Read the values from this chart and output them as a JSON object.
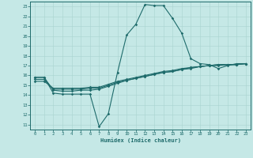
{
  "xlabel": "Humidex (Indice chaleur)",
  "bg_color": "#c5e8e6",
  "line_color": "#1e6b6b",
  "grid_color": "#aad4d0",
  "xlim": [
    -0.5,
    23.5
  ],
  "ylim": [
    10.5,
    23.5
  ],
  "yticks": [
    11,
    12,
    13,
    14,
    15,
    16,
    17,
    18,
    19,
    20,
    21,
    22,
    23
  ],
  "xticks": [
    0,
    1,
    2,
    3,
    4,
    5,
    6,
    7,
    8,
    9,
    10,
    11,
    12,
    13,
    14,
    15,
    16,
    17,
    18,
    19,
    20,
    21,
    22,
    23
  ],
  "line1_x": [
    0,
    1,
    2,
    3,
    4,
    5,
    6,
    7,
    8,
    9,
    10,
    11,
    12,
    13,
    14,
    15,
    16,
    17,
    18,
    19,
    20,
    21,
    22,
    23
  ],
  "line1_y": [
    15.8,
    15.8,
    14.2,
    14.1,
    14.1,
    14.1,
    14.1,
    10.8,
    12.1,
    16.3,
    20.1,
    21.2,
    23.2,
    23.1,
    23.1,
    21.8,
    20.3,
    17.7,
    17.2,
    17.1,
    16.7,
    17.0,
    17.2,
    17.2
  ],
  "line2_x": [
    0,
    1,
    2,
    3,
    4,
    5,
    6,
    7,
    8,
    9,
    10,
    11,
    12,
    13,
    14,
    15,
    16,
    17,
    18,
    19,
    20,
    21,
    22,
    23
  ],
  "line2_y": [
    15.8,
    15.8,
    14.5,
    14.4,
    14.4,
    14.5,
    14.5,
    14.6,
    14.9,
    15.2,
    15.5,
    15.7,
    15.9,
    16.1,
    16.3,
    16.4,
    16.6,
    16.7,
    16.9,
    17.0,
    17.1,
    17.1,
    17.1,
    17.2
  ],
  "line3_x": [
    0,
    1,
    2,
    3,
    4,
    5,
    6,
    7,
    8,
    9,
    10,
    11,
    12,
    13,
    14,
    15,
    16,
    17,
    18,
    19,
    20,
    21,
    22,
    23
  ],
  "line3_y": [
    15.6,
    15.6,
    14.6,
    14.6,
    14.6,
    14.6,
    14.7,
    14.7,
    15.0,
    15.3,
    15.5,
    15.7,
    15.9,
    16.1,
    16.3,
    16.4,
    16.6,
    16.8,
    16.9,
    17.0,
    17.1,
    17.1,
    17.1,
    17.2
  ],
  "line4_x": [
    0,
    1,
    2,
    3,
    4,
    5,
    6,
    7,
    8,
    9,
    10,
    11,
    12,
    13,
    14,
    15,
    16,
    17,
    18,
    19,
    20,
    21,
    22,
    23
  ],
  "line4_y": [
    15.4,
    15.4,
    14.7,
    14.7,
    14.7,
    14.7,
    14.8,
    14.8,
    15.1,
    15.4,
    15.6,
    15.8,
    16.0,
    16.2,
    16.4,
    16.5,
    16.7,
    16.8,
    16.9,
    17.0,
    17.0,
    17.1,
    17.1,
    17.2
  ]
}
